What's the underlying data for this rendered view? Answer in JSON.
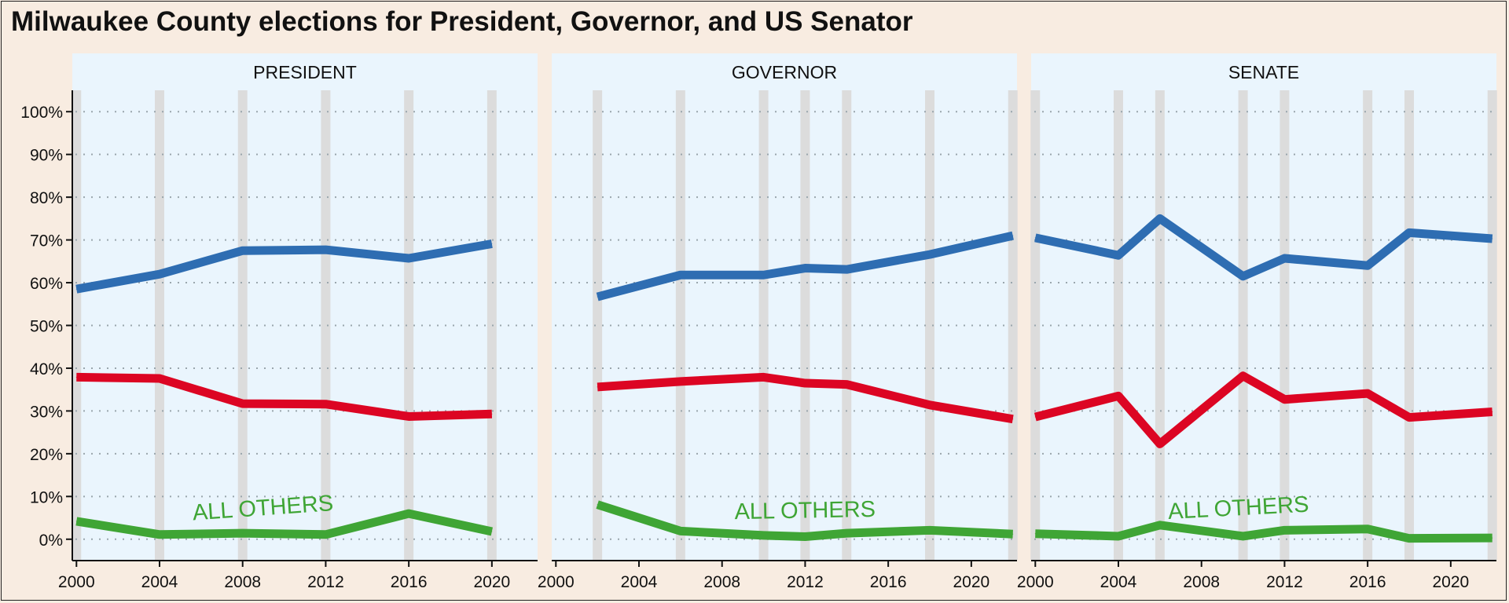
{
  "title": "Milwaukee County elections for President, Governor, and US Senator",
  "colors": {
    "page_background": "#f8ece1",
    "panel_background": "#eaf5fd",
    "year_bar": "#dcdcdc",
    "democrat": "#2e6db2",
    "republican": "#dc0523",
    "others": "#3fa535"
  },
  "chart_data": [
    {
      "type": "line",
      "facet": "PRESIDENT",
      "x": [
        2000,
        2004,
        2008,
        2012,
        2016,
        2020
      ],
      "series": [
        {
          "color": "#2e6db2",
          "values": [
            58.5,
            62,
            67.5,
            67.7,
            65.7,
            69.1
          ]
        },
        {
          "color": "#dc0523",
          "values": [
            37.9,
            37.6,
            31.7,
            31.6,
            28.7,
            29.3
          ]
        },
        {
          "color": "#3fa535",
          "values": [
            4.2,
            1.1,
            1.4,
            1.1,
            6.0,
            1.8
          ]
        }
      ],
      "annotation": {
        "text": "ALL OTHERS",
        "x": 2009,
        "y": 5.6,
        "angle": -4
      },
      "xticks": [
        2000,
        2004,
        2008,
        2012,
        2016,
        2020
      ],
      "xlim": [
        1999.8,
        2022.2
      ],
      "ylim": [
        -5,
        105
      ]
    },
    {
      "type": "line",
      "facet": "GOVERNOR",
      "x": [
        2002,
        2006,
        2010,
        2012,
        2014,
        2018,
        2022
      ],
      "series": [
        {
          "color": "#2e6db2",
          "values": [
            56.7,
            61.8,
            61.8,
            63.4,
            63.1,
            66.6,
            71.0
          ]
        },
        {
          "color": "#dc0523",
          "values": [
            35.6,
            36.9,
            37.9,
            36.5,
            36.2,
            31.4,
            28.1
          ]
        },
        {
          "color": "#3fa535",
          "values": [
            8.1,
            1.9,
            0.9,
            0.6,
            1.4,
            2.1,
            1.2
          ]
        }
      ],
      "annotation": {
        "text": "ALL OTHERS",
        "x": 2012,
        "y": 5.0,
        "angle": -1
      },
      "xticks": [
        2000,
        2004,
        2008,
        2012,
        2016,
        2020
      ],
      "xlim": [
        1999.8,
        2022.2
      ],
      "ylim": [
        -5,
        105
      ]
    },
    {
      "type": "line",
      "facet": "SENATE",
      "x": [
        2000,
        2004,
        2006,
        2010,
        2012,
        2016,
        2018,
        2022
      ],
      "series": [
        {
          "color": "#2e6db2",
          "values": [
            70.5,
            66.4,
            75.0,
            61.5,
            65.7,
            64.0,
            71.7,
            70.3
          ]
        },
        {
          "color": "#dc0523",
          "values": [
            28.6,
            33.5,
            22.3,
            38.2,
            32.7,
            34.1,
            28.5,
            29.8
          ]
        },
        {
          "color": "#3fa535",
          "values": [
            1.3,
            0.7,
            3.3,
            0.7,
            2.1,
            2.4,
            0.2,
            0.3
          ]
        }
      ],
      "annotation": {
        "text": "ALL OTHERS",
        "x": 2009.8,
        "y": 5.6,
        "angle": -3
      },
      "xticks": [
        2000,
        2004,
        2008,
        2012,
        2016,
        2020
      ],
      "xlim": [
        1999.8,
        2022.2
      ],
      "ylim": [
        -5,
        105
      ]
    }
  ],
  "y_axis": {
    "ticks": [
      0,
      10,
      20,
      30,
      40,
      50,
      60,
      70,
      80,
      90,
      100
    ],
    "labels": [
      "0%",
      "10%",
      "20%",
      "30%",
      "40%",
      "50%",
      "60%",
      "70%",
      "80%",
      "90%",
      "100%"
    ]
  }
}
